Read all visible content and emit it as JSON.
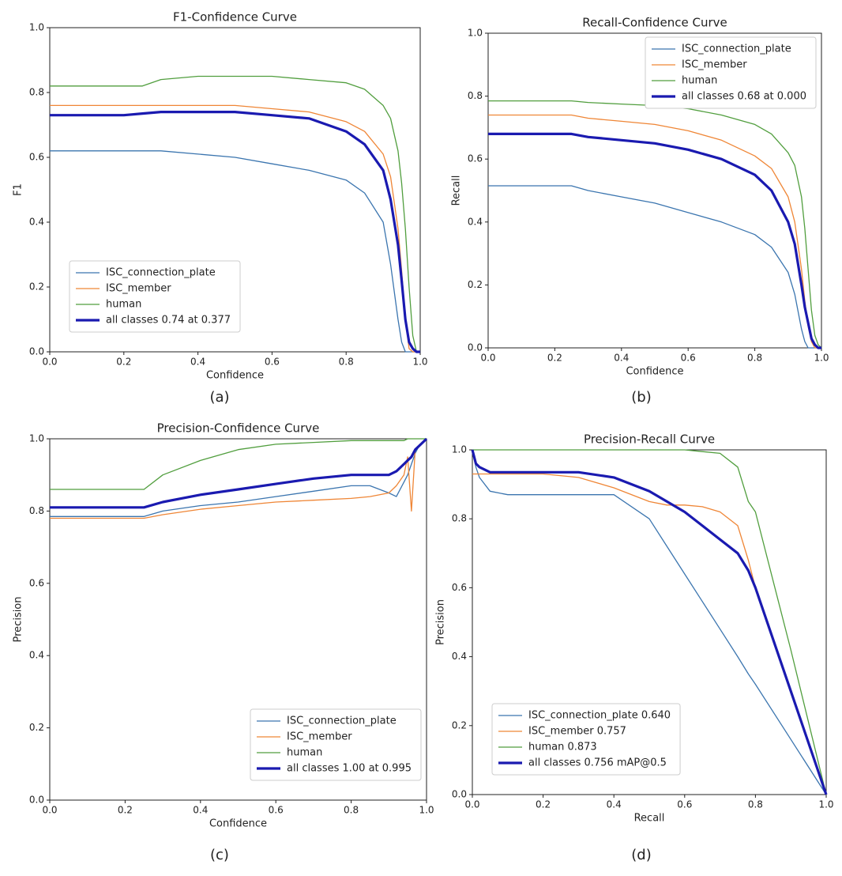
{
  "chart_data": [
    {
      "type": "line",
      "title": "F1-Confidence Curve",
      "xlabel": "Confidence",
      "ylabel": "F1",
      "caption": "(a)",
      "legend": "lower left",
      "x": [
        0,
        0.1,
        0.2,
        0.25,
        0.3,
        0.4,
        0.5,
        0.6,
        0.7,
        0.8,
        0.85,
        0.9,
        0.92,
        0.94,
        0.95,
        0.96,
        0.97,
        0.98,
        0.99,
        1.0
      ],
      "series": [
        {
          "name": "ISC_connection_plate",
          "color": "#3b75af",
          "values": [
            0.62,
            0.62,
            0.62,
            0.62,
            0.62,
            0.61,
            0.6,
            0.58,
            0.56,
            0.53,
            0.49,
            0.4,
            0.27,
            0.1,
            0.03,
            0,
            0,
            0,
            0,
            0
          ]
        },
        {
          "name": "ISC_member",
          "color": "#ef8636",
          "values": [
            0.76,
            0.76,
            0.76,
            0.76,
            0.76,
            0.76,
            0.76,
            0.75,
            0.74,
            0.71,
            0.68,
            0.61,
            0.54,
            0.38,
            0.25,
            0.1,
            0.01,
            0,
            0,
            0
          ]
        },
        {
          "name": "human",
          "color": "#519e3e",
          "values": [
            0.82,
            0.82,
            0.82,
            0.82,
            0.84,
            0.85,
            0.85,
            0.85,
            0.84,
            0.83,
            0.81,
            0.76,
            0.72,
            0.62,
            0.52,
            0.38,
            0.2,
            0.05,
            0,
            0
          ]
        },
        {
          "name": "all classes 0.74 at 0.377",
          "color": "#1a1ab0",
          "values": [
            0.73,
            0.73,
            0.73,
            0.735,
            0.74,
            0.74,
            0.74,
            0.73,
            0.72,
            0.68,
            0.64,
            0.56,
            0.47,
            0.33,
            0.22,
            0.1,
            0.03,
            0.01,
            0,
            0
          ]
        }
      ],
      "xlim": [
        0,
        1
      ],
      "ylim": [
        0,
        1
      ],
      "xticks": [
        {
          "value": 0,
          "label": "0.0"
        },
        0.2,
        0.4,
        0.6,
        0.8,
        {
          "value": 1,
          "label": "1.0"
        }
      ],
      "yticks": [
        {
          "value": 0,
          "label": "0.0"
        },
        0.2,
        0.4,
        0.6,
        0.8,
        {
          "value": 1,
          "label": "1.0"
        }
      ]
    },
    {
      "type": "line",
      "title": "Recall-Confidence Curve",
      "xlabel": "Confidence",
      "ylabel": "Recall",
      "caption": "(b)",
      "legend": "upper right",
      "x": [
        0,
        0.1,
        0.2,
        0.25,
        0.3,
        0.4,
        0.5,
        0.6,
        0.7,
        0.8,
        0.85,
        0.9,
        0.92,
        0.94,
        0.95,
        0.96,
        0.97,
        0.98,
        0.99,
        1.0
      ],
      "series": [
        {
          "name": "ISC_connection_plate",
          "color": "#3b75af",
          "values": [
            0.515,
            0.515,
            0.515,
            0.515,
            0.5,
            0.48,
            0.46,
            0.43,
            0.4,
            0.36,
            0.32,
            0.24,
            0.17,
            0.06,
            0.02,
            0,
            0,
            0,
            0,
            0
          ]
        },
        {
          "name": "ISC_member",
          "color": "#ef8636",
          "values": [
            0.74,
            0.74,
            0.74,
            0.74,
            0.73,
            0.72,
            0.71,
            0.69,
            0.66,
            0.61,
            0.57,
            0.48,
            0.4,
            0.25,
            0.15,
            0.07,
            0.02,
            0,
            0,
            0
          ]
        },
        {
          "name": "human",
          "color": "#519e3e",
          "values": [
            0.785,
            0.785,
            0.785,
            0.785,
            0.78,
            0.775,
            0.77,
            0.76,
            0.74,
            0.71,
            0.68,
            0.62,
            0.58,
            0.48,
            0.38,
            0.25,
            0.12,
            0.04,
            0.01,
            0
          ]
        },
        {
          "name": "all classes 0.68 at 0.000",
          "color": "#1a1ab0",
          "values": [
            0.68,
            0.68,
            0.68,
            0.68,
            0.67,
            0.66,
            0.65,
            0.63,
            0.6,
            0.55,
            0.5,
            0.4,
            0.33,
            0.2,
            0.13,
            0.08,
            0.03,
            0.01,
            0,
            0
          ]
        }
      ],
      "xlim": [
        0,
        1
      ],
      "ylim": [
        0,
        1
      ],
      "xticks": [
        {
          "value": 0,
          "label": "0.0"
        },
        0.2,
        0.4,
        0.6,
        0.8,
        {
          "value": 1,
          "label": "1.0"
        }
      ],
      "yticks": [
        {
          "value": 0,
          "label": "0.0"
        },
        0.2,
        0.4,
        0.6,
        0.8,
        {
          "value": 1,
          "label": "1.0"
        }
      ]
    },
    {
      "type": "line",
      "title": "Precision-Confidence Curve",
      "xlabel": "Confidence",
      "ylabel": "Precision",
      "caption": "(c)",
      "legend": "lower right",
      "x": [
        0,
        0.1,
        0.2,
        0.25,
        0.3,
        0.4,
        0.5,
        0.6,
        0.7,
        0.8,
        0.85,
        0.9,
        0.92,
        0.94,
        0.95,
        0.96,
        0.97,
        0.98,
        0.99,
        1.0
      ],
      "series": [
        {
          "name": "ISC_connection_plate",
          "color": "#3b75af",
          "values": [
            0.785,
            0.785,
            0.785,
            0.785,
            0.8,
            0.815,
            0.825,
            0.84,
            0.855,
            0.87,
            0.87,
            0.85,
            0.84,
            0.88,
            0.9,
            0.93,
            0.96,
            0.98,
            0.99,
            1.0
          ]
        },
        {
          "name": "ISC_member",
          "color": "#ef8636",
          "values": [
            0.78,
            0.78,
            0.78,
            0.78,
            0.79,
            0.805,
            0.815,
            0.825,
            0.83,
            0.835,
            0.84,
            0.85,
            0.87,
            0.9,
            0.95,
            0.8,
            0.97,
            0.98,
            0.99,
            1.0
          ]
        },
        {
          "name": "human",
          "color": "#519e3e",
          "values": [
            0.86,
            0.86,
            0.86,
            0.86,
            0.9,
            0.94,
            0.97,
            0.985,
            0.99,
            0.995,
            0.995,
            0.995,
            0.995,
            0.995,
            1.0,
            1.0,
            1.0,
            1.0,
            1.0,
            1.0
          ]
        },
        {
          "name": "all classes 1.00 at 0.995",
          "color": "#1a1ab0",
          "values": [
            0.81,
            0.81,
            0.81,
            0.81,
            0.825,
            0.845,
            0.86,
            0.875,
            0.89,
            0.9,
            0.9,
            0.9,
            0.91,
            0.93,
            0.94,
            0.95,
            0.97,
            0.98,
            0.99,
            1.0
          ]
        }
      ],
      "xlim": [
        0,
        1
      ],
      "ylim": [
        0,
        1
      ],
      "xticks": [
        {
          "value": 0,
          "label": "0.0"
        },
        0.2,
        0.4,
        0.6,
        0.8,
        {
          "value": 1,
          "label": "1.0"
        }
      ],
      "yticks": [
        {
          "value": 0,
          "label": "0.0"
        },
        0.2,
        0.4,
        0.6,
        0.8,
        {
          "value": 1,
          "label": "1.0"
        }
      ]
    },
    {
      "type": "line",
      "title": "Precision-Recall Curve",
      "xlabel": "Recall",
      "ylabel": "Precision",
      "caption": "(d)",
      "legend": "lower left",
      "x": [
        0,
        0.01,
        0.02,
        0.05,
        0.1,
        0.2,
        0.3,
        0.4,
        0.5,
        0.55,
        0.6,
        0.65,
        0.7,
        0.75,
        0.78,
        0.8,
        0.9,
        1.0
      ],
      "series": [
        {
          "name": "ISC_connection_plate 0.640",
          "color": "#3b75af",
          "values": [
            1.0,
            0.95,
            0.92,
            0.88,
            0.87,
            0.87,
            0.87,
            0.87,
            0.8,
            0.72,
            0.64,
            0.56,
            0.48,
            0.4,
            0.35,
            0.32,
            0.16,
            0
          ]
        },
        {
          "name": "ISC_member 0.757",
          "color": "#ef8636",
          "values": [
            0.93,
            0.93,
            0.93,
            0.93,
            0.93,
            0.93,
            0.92,
            0.89,
            0.85,
            0.84,
            0.84,
            0.835,
            0.82,
            0.78,
            0.68,
            0.6,
            0.3,
            0
          ]
        },
        {
          "name": "human 0.873",
          "color": "#519e3e",
          "values": [
            1.0,
            1.0,
            1.0,
            1.0,
            1.0,
            1.0,
            1.0,
            1.0,
            1.0,
            1.0,
            1.0,
            0.995,
            0.99,
            0.95,
            0.85,
            0.82,
            0.42,
            0
          ]
        },
        {
          "name": "all classes 0.756 mAP@0.5",
          "color": "#1a1ab0",
          "values": [
            1.0,
            0.96,
            0.95,
            0.935,
            0.935,
            0.935,
            0.935,
            0.92,
            0.88,
            0.85,
            0.82,
            0.78,
            0.74,
            0.7,
            0.65,
            0.6,
            0.3,
            0
          ]
        }
      ],
      "xlim": [
        0,
        1
      ],
      "ylim": [
        0,
        1
      ],
      "xticks": [
        {
          "value": 0,
          "label": "0.0"
        },
        0.2,
        0.4,
        0.6,
        0.8,
        {
          "value": 1,
          "label": "1.0"
        }
      ],
      "yticks": [
        {
          "value": 0,
          "label": "0.0"
        },
        0.2,
        0.4,
        0.6,
        0.8,
        {
          "value": 1,
          "label": "1.0"
        }
      ]
    }
  ]
}
